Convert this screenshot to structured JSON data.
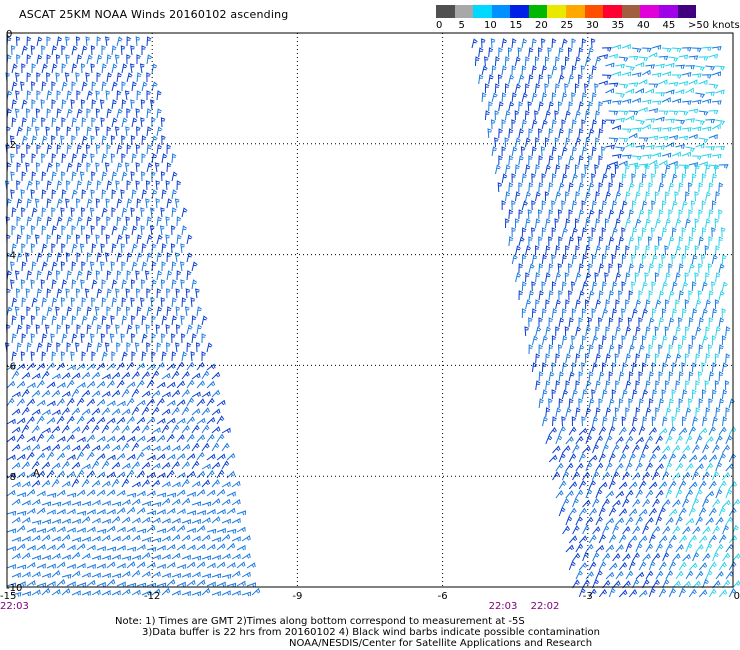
{
  "title": "ASCAT 25KM NOAA Winds 20160102 ascending",
  "speed_scale": {
    "colors": [
      "#505050",
      "#a8a8a8",
      "#00d8ff",
      "#0090ff",
      "#0020e8",
      "#00b800",
      "#e8e800",
      "#ffa800",
      "#ff5000",
      "#ff0030",
      "#a06040",
      "#e000d8",
      "#a000e8",
      "#400080"
    ],
    "labels": [
      "0",
      "5",
      "10",
      "15",
      "20",
      "25",
      "30",
      "35",
      "40",
      "45",
      ">50 knots"
    ]
  },
  "y_axis": {
    "ticks": [
      "0",
      "-2",
      "-4",
      "-6",
      "-8",
      "-10"
    ],
    "values": [
      0,
      -2,
      -4,
      -6,
      -8,
      -10
    ],
    "range": [
      -10,
      0
    ]
  },
  "x_axis": {
    "ticks": [
      "-15",
      "-12",
      "-9",
      "-6",
      "-3",
      "0"
    ],
    "values": [
      -15,
      -12,
      -9,
      -6,
      -3,
      0
    ],
    "range": [
      -15,
      0
    ]
  },
  "pass_times": [
    "22:03",
    "22:03",
    "22:02"
  ],
  "marker_label": "A",
  "notes": {
    "line1": "Note: 1) Times are GMT 2)Times along bottom correspond to measurement at -5S",
    "line2": "3)Data buffer is 22 hrs from 20160102 4) Black wind barbs indicate possible contamination",
    "line3": "NOAA/NESDIS/Center for Satellite Applications and Research"
  },
  "colors": {
    "barb_deep_blue": "#0a3fd2",
    "barb_blue": "#1c7be2",
    "barb_cyan": "#2cd2ea",
    "grid": "#000000",
    "time_label": "#800080"
  }
}
